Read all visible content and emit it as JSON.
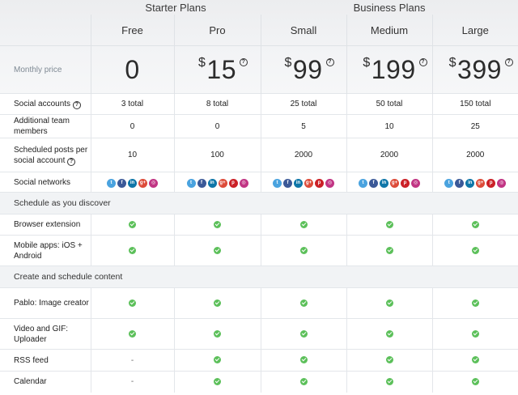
{
  "groups": {
    "starter": "Starter Plans",
    "business": "Business Plans"
  },
  "plans": [
    "Free",
    "Pro",
    "Small",
    "Medium",
    "Large"
  ],
  "monthly_price": {
    "label": "Monthly price",
    "currency": "$",
    "values": [
      "0",
      "15",
      "99",
      "199",
      "399"
    ]
  },
  "social_accounts": {
    "label": "Social accounts",
    "values": [
      "3 total",
      "8 total",
      "25 total",
      "50 total",
      "150 total"
    ]
  },
  "team_members": {
    "label": "Additional team members",
    "values": [
      "0",
      "0",
      "5",
      "10",
      "25"
    ]
  },
  "scheduled_posts": {
    "label": "Scheduled posts per social account",
    "values": [
      "10",
      "100",
      "2000",
      "2000",
      "2000"
    ]
  },
  "social_networks": {
    "label": "Social networks",
    "sets": [
      [
        "twitter-icon",
        "facebook-icon",
        "linkedin-icon",
        "google-plus-icon",
        "instagram-icon"
      ],
      [
        "twitter-icon",
        "facebook-icon",
        "linkedin-icon",
        "google-plus-icon",
        "pinterest-icon",
        "instagram-icon"
      ],
      [
        "twitter-icon",
        "facebook-icon",
        "linkedin-icon",
        "google-plus-icon",
        "pinterest-icon",
        "instagram-icon"
      ],
      [
        "twitter-icon",
        "facebook-icon",
        "linkedin-icon",
        "google-plus-icon",
        "pinterest-icon",
        "instagram-icon"
      ],
      [
        "twitter-icon",
        "facebook-icon",
        "linkedin-icon",
        "google-plus-icon",
        "pinterest-icon",
        "instagram-icon"
      ]
    ]
  },
  "section_schedule": "Schedule as you discover",
  "browser_extension": {
    "label": "Browser extension",
    "values": [
      "check",
      "check",
      "check",
      "check",
      "check"
    ]
  },
  "mobile_apps": {
    "label": "Mobile apps: iOS + Android",
    "values": [
      "check",
      "check",
      "check",
      "check",
      "check"
    ]
  },
  "section_create": "Create and schedule content",
  "pablo": {
    "label": "Pablo: Image creator",
    "values": [
      "check",
      "check",
      "check",
      "check",
      "check"
    ]
  },
  "video_gif": {
    "label": "Video and GIF: Uploader",
    "values": [
      "check",
      "check",
      "check",
      "check",
      "check"
    ]
  },
  "rss_feed": {
    "label": "RSS feed",
    "values": [
      "-",
      "check",
      "check",
      "check",
      "check"
    ]
  },
  "calendar": {
    "label": "Calendar",
    "values": [
      "-",
      "check",
      "check",
      "check",
      "check"
    ]
  },
  "help_glyph": "?",
  "colors": {
    "check": "#5cc05a",
    "section_bg": "#f1f3f5",
    "label": "#7f8a94"
  }
}
